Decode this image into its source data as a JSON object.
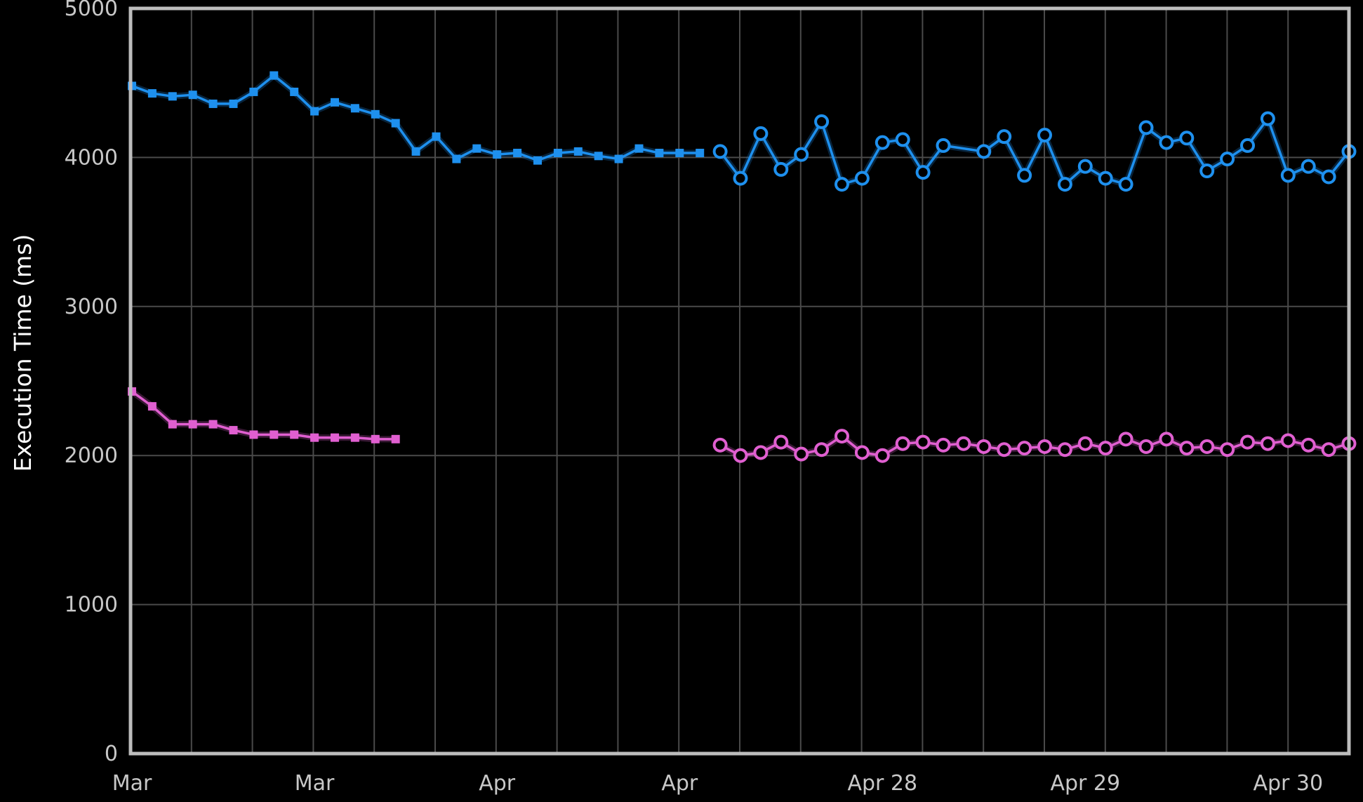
{
  "chart_data": {
    "type": "line",
    "ylabel": "Execution Time (ms)",
    "ylim": [
      0,
      5000
    ],
    "y_ticks": [
      0,
      1000,
      2000,
      3000,
      4000,
      5000
    ],
    "x_tick_labels": [
      "Mar",
      "Mar",
      "Apr",
      "Apr",
      "Apr 28",
      "Apr 29",
      "Apr 30"
    ],
    "grid": true,
    "colors": {
      "background": "#000000",
      "frame": "#bdbdbd",
      "grid": "#4a4a4a",
      "series_blue": "#1e90ee",
      "series_pink": "#e05fd0"
    },
    "series": [
      {
        "color": "#1e90ee",
        "marker": "square",
        "x": [
          0,
          1,
          2,
          3,
          4,
          5,
          6,
          7,
          8,
          9,
          10,
          11,
          12,
          13,
          14,
          15,
          16,
          17,
          18,
          19,
          20,
          21,
          22,
          23,
          24,
          25,
          26,
          27,
          28
        ],
        "values": [
          4480,
          4430,
          4410,
          4420,
          4360,
          4360,
          4440,
          4550,
          4440,
          4310,
          4370,
          4330,
          4290,
          4230,
          4040,
          4140,
          3990,
          4060,
          4020,
          4030,
          3980,
          4030,
          4040,
          4010,
          3990,
          4060,
          4030,
          4030,
          4030
        ]
      },
      {
        "color": "#1e90ee",
        "marker": "circle",
        "x": [
          29,
          30,
          31,
          32,
          33,
          34,
          35,
          36,
          37,
          38,
          39,
          40,
          42,
          43,
          44,
          45,
          46,
          47,
          48,
          49,
          50,
          51,
          52,
          53,
          54,
          55,
          56,
          57,
          58,
          59,
          60
        ],
        "values": [
          4040,
          3860,
          4160,
          3920,
          4020,
          4240,
          3820,
          3860,
          4100,
          4120,
          3900,
          4080,
          4040,
          4140,
          3880,
          4150,
          3820,
          3940,
          3860,
          3820,
          4200,
          4100,
          4130,
          3910,
          3990,
          4080,
          4260,
          3880,
          3940,
          3870,
          4040
        ]
      },
      {
        "color": "#e05fd0",
        "marker": "square",
        "x": [
          0,
          1,
          2,
          3,
          4,
          5,
          6,
          7,
          8,
          9,
          10,
          11,
          12,
          13
        ],
        "values": [
          2430,
          2330,
          2210,
          2210,
          2210,
          2170,
          2140,
          2140,
          2140,
          2120,
          2120,
          2120,
          2110,
          2110
        ]
      },
      {
        "color": "#e05fd0",
        "marker": "circle",
        "x": [
          29,
          30,
          31,
          32,
          33,
          34,
          35,
          36,
          37,
          38,
          39,
          40,
          41,
          42,
          43,
          44,
          45,
          46,
          47,
          48,
          49,
          50,
          51,
          52,
          53,
          54,
          55,
          56,
          57,
          58,
          59,
          60
        ],
        "values": [
          2070,
          2000,
          2020,
          2090,
          2010,
          2040,
          2130,
          2020,
          2000,
          2080,
          2090,
          2070,
          2080,
          2060,
          2040,
          2050,
          2060,
          2040,
          2080,
          2050,
          2110,
          2060,
          2110,
          2050,
          2060,
          2040,
          2090,
          2080,
          2100,
          2070,
          2040,
          2080
        ]
      }
    ]
  }
}
